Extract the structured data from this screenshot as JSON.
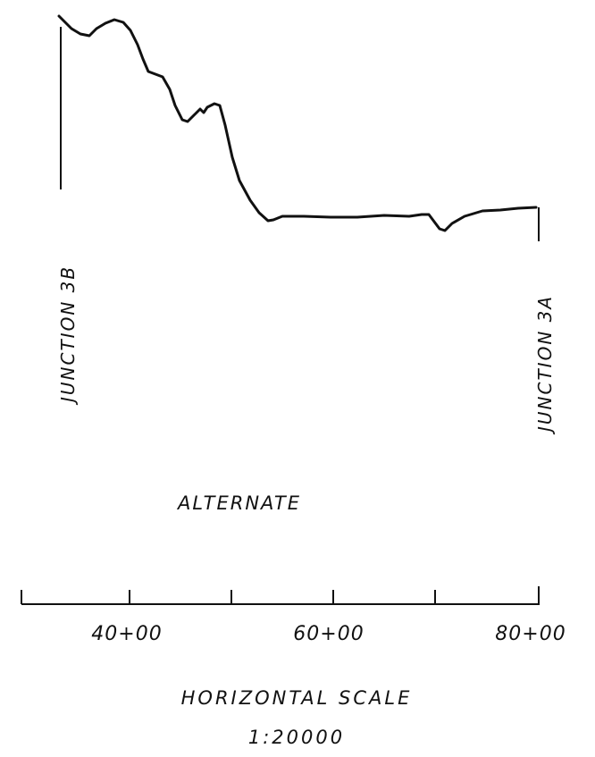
{
  "junction_left": "JUNCTION  3B",
  "junction_right": "JUNCTION  3A",
  "profile_title": "ALTERNATE",
  "scale": {
    "title": "HORIZONTAL  SCALE",
    "ratio": "1:20000",
    "tick_labels": [
      "40+00",
      "60+00",
      "80+00"
    ]
  }
}
